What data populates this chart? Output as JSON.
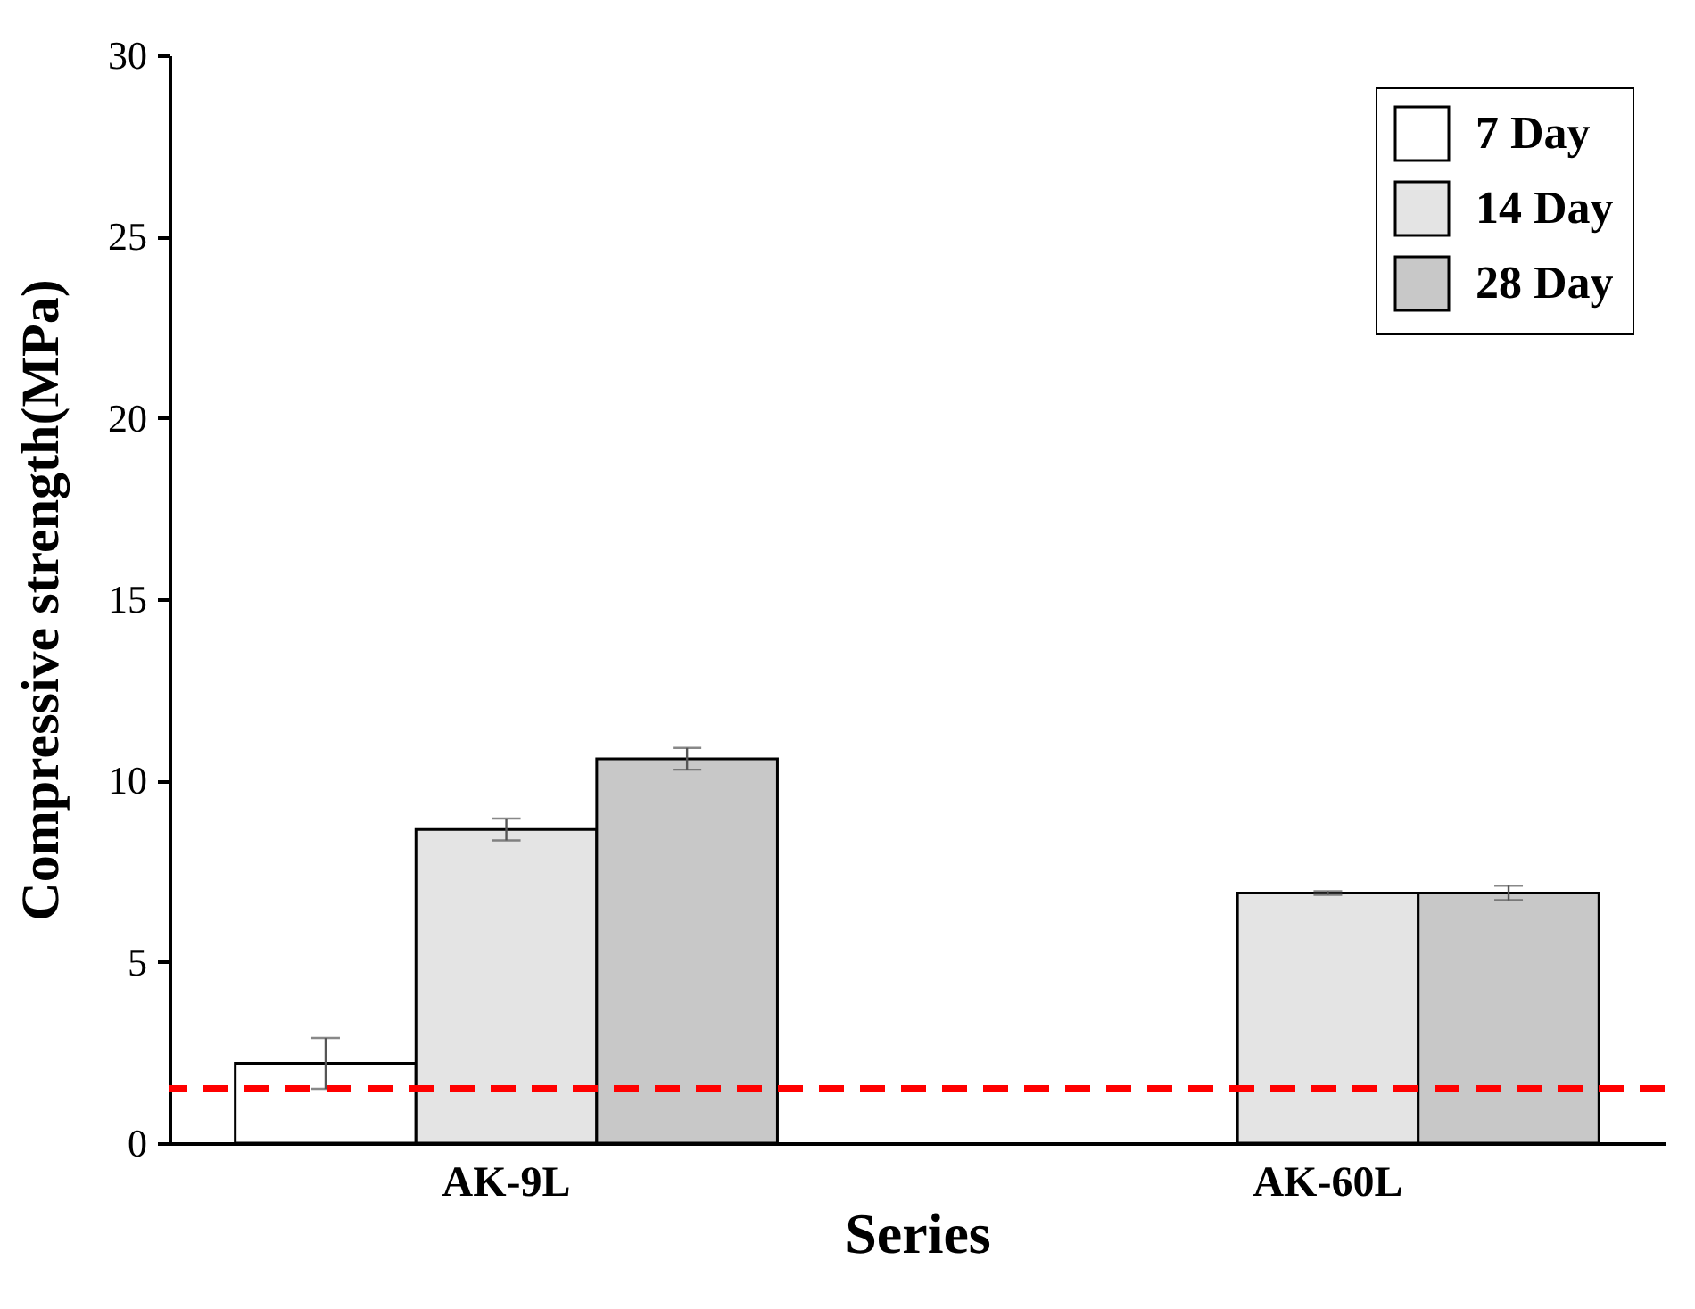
{
  "chart_data": {
    "type": "bar",
    "xlabel": "Series",
    "ylabel": "Compressive strength(MPa)",
    "categories": [
      "AK-9L",
      "AK-60L"
    ],
    "series": [
      {
        "name": "7 Day",
        "color": "#ffffff",
        "values": [
          2.2,
          null
        ],
        "errors": [
          0.7,
          null
        ]
      },
      {
        "name": "14 Day",
        "color": "#e4e4e4",
        "values": [
          8.65,
          6.9
        ],
        "errors": [
          0.3,
          0.05
        ]
      },
      {
        "name": "28 Day",
        "color": "#c8c8c8",
        "values": [
          10.6,
          6.9
        ],
        "errors": [
          0.3,
          0.2
        ]
      }
    ],
    "ylim": [
      0,
      30
    ],
    "yticks": [
      0,
      5,
      10,
      15,
      20,
      25,
      30
    ],
    "ref_lines": [
      {
        "axis": "y",
        "value": 1.5,
        "color": "#ff0000",
        "line_style": "dashed"
      }
    ],
    "legend": "top right",
    "grid": false
  }
}
